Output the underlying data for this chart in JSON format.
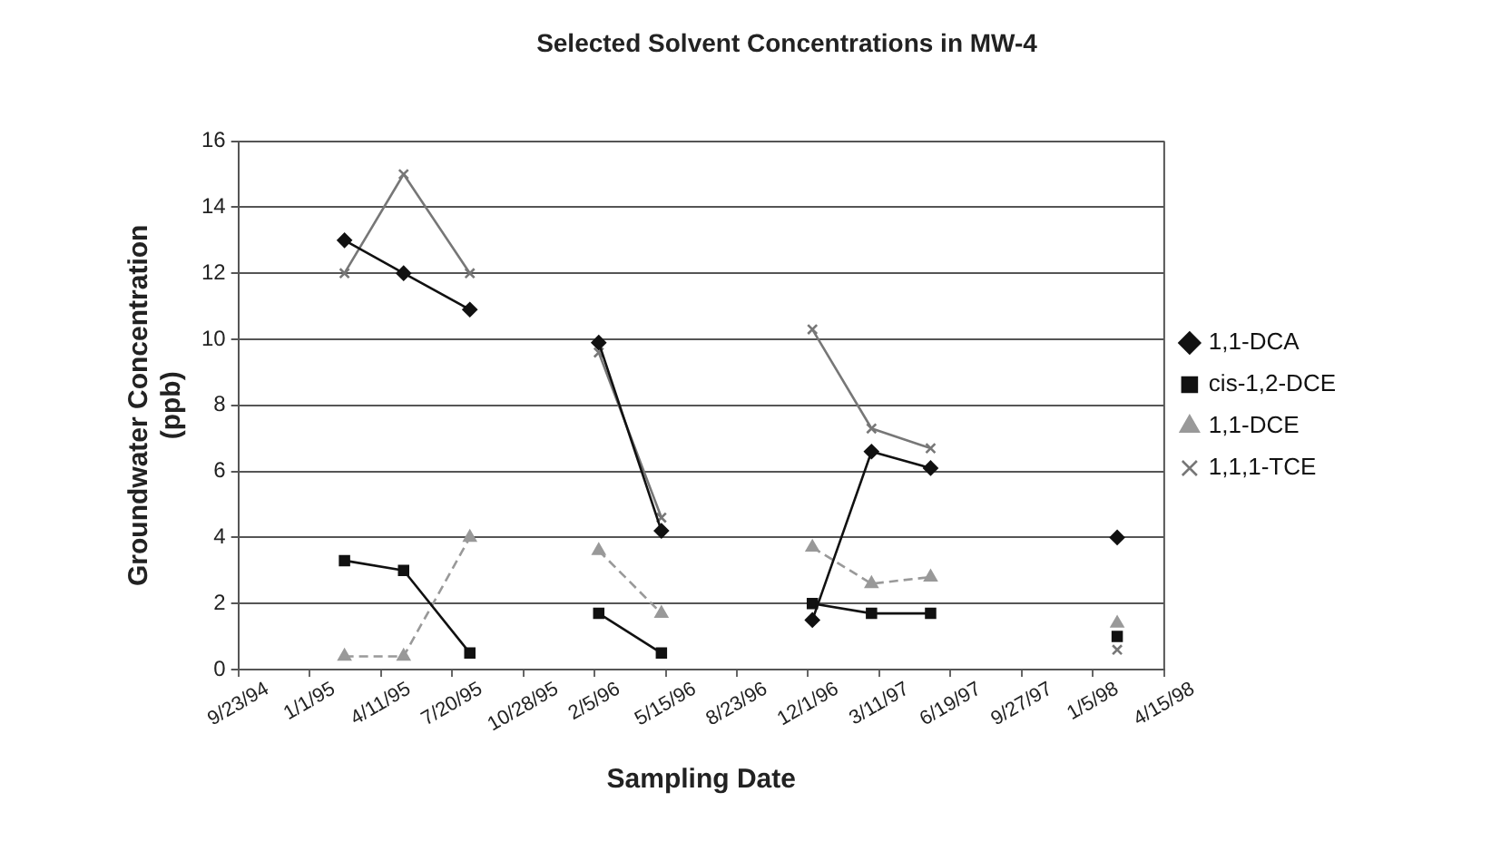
{
  "chart_data": {
    "type": "line",
    "title": "Selected Solvent Concentrations in MW-4",
    "xlabel": "Sampling Date",
    "ylabel": "Groundwater Concentration (ppb)",
    "x": [
      "1995-02-19",
      "1995-05-13",
      "1995-08-14",
      "1995-11-15",
      "1996-02-11",
      "1996-05-09",
      "1996-08-23",
      "1996-12-07",
      "1997-02-28",
      "1997-05-22",
      "1997-09-27",
      "1998-02-08"
    ],
    "series": [
      {
        "name": "1,1-DCA",
        "color": "#111111",
        "marker": "diamond",
        "line_style": "solid",
        "values": [
          13,
          12,
          10.9,
          null,
          9.9,
          4.2,
          null,
          1.5,
          6.6,
          6.1,
          null,
          4
        ]
      },
      {
        "name": "cis-1,2-DCE",
        "color": "#111111",
        "marker": "square",
        "line_style": "solid",
        "values": [
          3.3,
          3,
          0.5,
          null,
          1.7,
          0.5,
          null,
          2,
          1.7,
          1.7,
          null,
          1
        ]
      },
      {
        "name": "1,1-DCE",
        "color": "#999999",
        "marker": "triangle",
        "line_style": "dashed",
        "values": [
          0.4,
          0.4,
          4,
          null,
          3.6,
          1.7,
          null,
          3.7,
          2.6,
          2.8,
          null,
          1.4
        ]
      },
      {
        "name": "1,1,1-TCE",
        "color": "#777777",
        "marker": "cross",
        "line_style": "solid",
        "values": [
          12,
          15,
          12,
          null,
          9.6,
          4.6,
          null,
          10.3,
          7.3,
          6.7,
          null,
          0.6
        ]
      }
    ],
    "xlim": [
      "1994-09-23",
      "1998-04-15"
    ],
    "xticks": [
      {
        "value": "1994-09-23",
        "label": "9/23/94"
      },
      {
        "value": "1995-01-01",
        "label": "1/1/95"
      },
      {
        "value": "1995-04-11",
        "label": "4/11/95"
      },
      {
        "value": "1995-07-20",
        "label": "7/20/95"
      },
      {
        "value": "1995-10-28",
        "label": "10/28/95"
      },
      {
        "value": "1996-02-05",
        "label": "2/5/96"
      },
      {
        "value": "1996-05-15",
        "label": "5/15/96"
      },
      {
        "value": "1996-08-23",
        "label": "8/23/96"
      },
      {
        "value": "1996-12-01",
        "label": "12/1/96"
      },
      {
        "value": "1997-03-11",
        "label": "3/11/97"
      },
      {
        "value": "1997-06-19",
        "label": "6/19/97"
      },
      {
        "value": "1997-09-27",
        "label": "9/27/97"
      },
      {
        "value": "1998-01-05",
        "label": "1/5/98"
      },
      {
        "value": "1998-04-15",
        "label": "4/15/98"
      }
    ],
    "ylim": [
      0,
      16
    ],
    "yticks": [
      0,
      2,
      4,
      6,
      8,
      10,
      12,
      14,
      16
    ],
    "grid": "y",
    "legend": "right"
  }
}
